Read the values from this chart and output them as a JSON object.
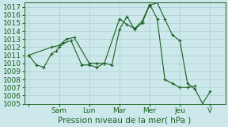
{
  "background_color": "#cce8ea",
  "grid_color": "#aacdd0",
  "line_color": "#1a6020",
  "ylim": [
    1005,
    1017.5
  ],
  "ytick_min": 1005,
  "ytick_max": 1017,
  "xlim": [
    -0.3,
    13.0
  ],
  "x_tick_labels": [
    "",
    "Sam",
    "Lun",
    "Mar",
    "Mer",
    "Jeu",
    "V"
  ],
  "x_tick_positions": [
    0,
    2,
    4,
    6,
    8,
    10,
    12
  ],
  "xlabel": "Pression niveau de la mer( hPa )",
  "axis_fontsize": 7.5,
  "tick_fontsize": 6.5,
  "series1_x": [
    0,
    0.5,
    1.0,
    1.5,
    1.8,
    2.0,
    2.3,
    2.8,
    3.5,
    4.0,
    4.5,
    5.0,
    5.5,
    6.0,
    6.5,
    7.0,
    7.5,
    8.0,
    8.5,
    9.0,
    9.5,
    10.0,
    10.5,
    11.0,
    11.5,
    12.0
  ],
  "series1_y": [
    1011,
    1009.8,
    1009.5,
    1011.2,
    1011.5,
    1012.0,
    1012.5,
    1012.8,
    1009.8,
    1009.8,
    1009.5,
    1010.0,
    1009.8,
    1014.2,
    1015.8,
    1014.2,
    1015.0,
    1017.2,
    1017.5,
    1015.5,
    1013.5,
    1012.8,
    1007.5,
    1006.8,
    1005.0,
    1006.5
  ],
  "series2_x": [
    0,
    1.5,
    2.0,
    2.5,
    3.0,
    4.0,
    4.5,
    5.0,
    6.0,
    6.5,
    7.0,
    7.5,
    8.0,
    8.5,
    9.0,
    9.5,
    10.0,
    10.5,
    11.0
  ],
  "series2_y": [
    1011,
    1012.0,
    1012.2,
    1013.0,
    1013.2,
    1010.0,
    1010.0,
    1010.0,
    1015.5,
    1014.8,
    1014.3,
    1015.2,
    1017.3,
    1015.5,
    1008.0,
    1007.5,
    1007.0,
    1007.0,
    1007.2
  ]
}
